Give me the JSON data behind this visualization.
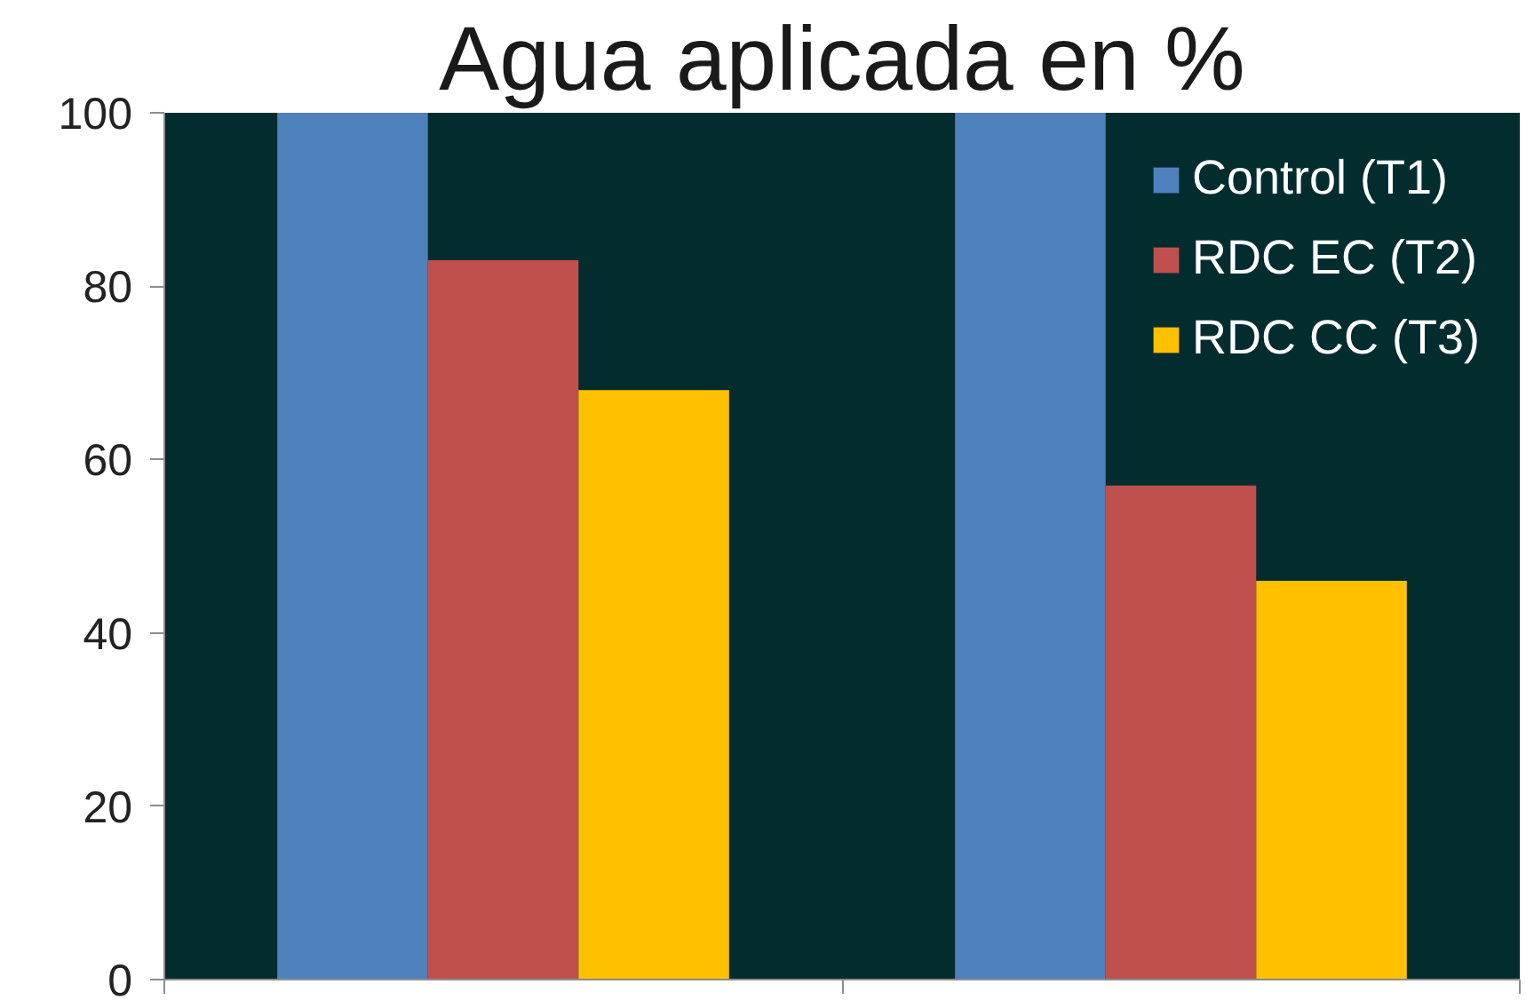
{
  "chart_data": {
    "type": "bar",
    "title": "Agua aplicada en %",
    "categories": [
      null,
      null
    ],
    "series": [
      {
        "name": "Control (T1)",
        "color": "#4f81bd",
        "values": [
          100,
          100
        ]
      },
      {
        "name": "RDC EC (T2)",
        "color": "#c0504d",
        "values": [
          83,
          57
        ]
      },
      {
        "name": "RDC CC (T3)",
        "color": "#ffc000",
        "values": [
          68,
          46
        ]
      }
    ],
    "ylim": [
      0,
      100
    ],
    "yticks": [
      0,
      20,
      40,
      60,
      80,
      100
    ],
    "legend": "top right"
  }
}
